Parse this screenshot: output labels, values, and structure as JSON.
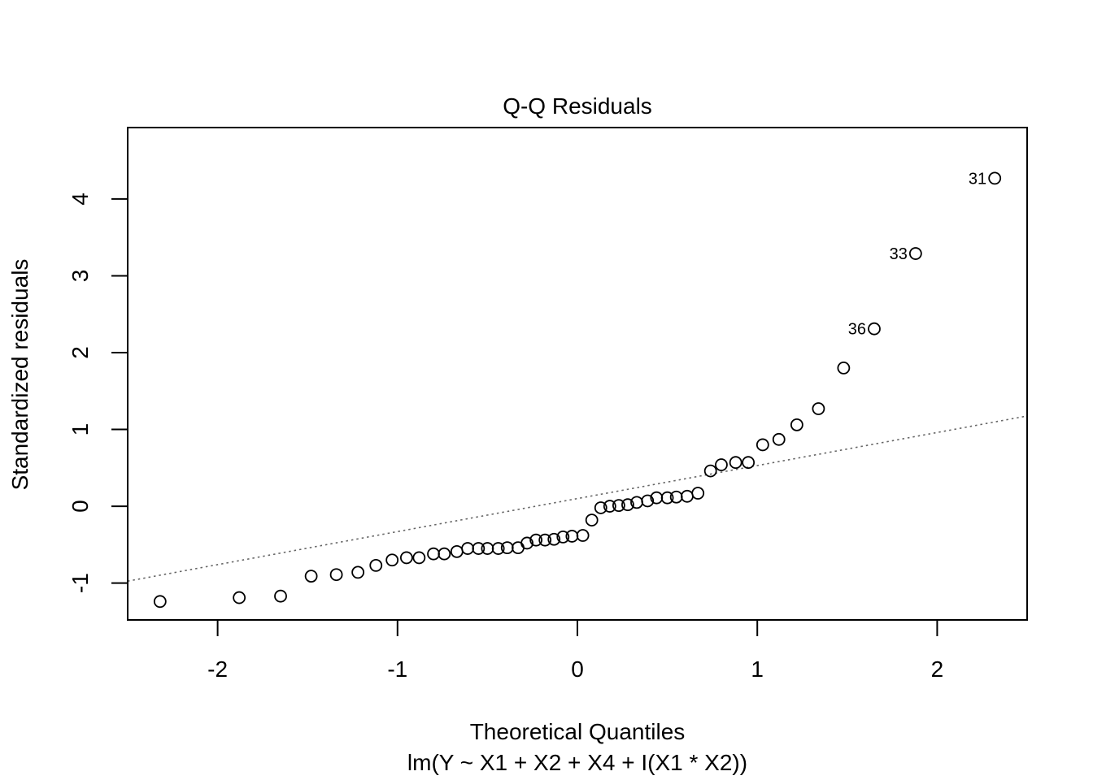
{
  "chart_data": {
    "type": "scatter",
    "title": "Q-Q Residuals",
    "xlabel": "Theoretical Quantiles",
    "sublabel": "lm(Y ~ X1 + X2 + X4 + I(X1 * X2))",
    "ylabel": "Standardized residuals",
    "xlim": [
      -2.5,
      2.5
    ],
    "ylim": [
      -1.48,
      4.93
    ],
    "x_ticks": [
      -2,
      -1,
      0,
      1,
      2
    ],
    "x_tick_labels": [
      "-2",
      "-1",
      "0",
      "1",
      "2"
    ],
    "y_ticks": [
      -1,
      0,
      1,
      2,
      3,
      4
    ],
    "y_tick_labels": [
      "-1",
      "0",
      "1",
      "2",
      "3",
      "4"
    ],
    "grid": false,
    "reference_line": {
      "style": "dotted",
      "color": "#666666",
      "intercept": 0.1,
      "slope": 0.43
    },
    "points": [
      {
        "x": -2.32,
        "y": -1.24
      },
      {
        "x": -1.88,
        "y": -1.19
      },
      {
        "x": -1.65,
        "y": -1.17
      },
      {
        "x": -1.48,
        "y": -0.91
      },
      {
        "x": -1.34,
        "y": -0.89
      },
      {
        "x": -1.22,
        "y": -0.86
      },
      {
        "x": -1.12,
        "y": -0.77
      },
      {
        "x": -1.03,
        "y": -0.7
      },
      {
        "x": -0.95,
        "y": -0.67
      },
      {
        "x": -0.88,
        "y": -0.67
      },
      {
        "x": -0.8,
        "y": -0.62
      },
      {
        "x": -0.74,
        "y": -0.62
      },
      {
        "x": -0.67,
        "y": -0.59
      },
      {
        "x": -0.61,
        "y": -0.55
      },
      {
        "x": -0.55,
        "y": -0.55
      },
      {
        "x": -0.5,
        "y": -0.55
      },
      {
        "x": -0.44,
        "y": -0.55
      },
      {
        "x": -0.39,
        "y": -0.54
      },
      {
        "x": -0.33,
        "y": -0.54
      },
      {
        "x": -0.28,
        "y": -0.48
      },
      {
        "x": -0.23,
        "y": -0.44
      },
      {
        "x": -0.18,
        "y": -0.44
      },
      {
        "x": -0.13,
        "y": -0.43
      },
      {
        "x": -0.08,
        "y": -0.4
      },
      {
        "x": -0.03,
        "y": -0.39
      },
      {
        "x": 0.03,
        "y": -0.38
      },
      {
        "x": 0.08,
        "y": -0.18
      },
      {
        "x": 0.13,
        "y": -0.02
      },
      {
        "x": 0.18,
        "y": 0.0
      },
      {
        "x": 0.23,
        "y": 0.01
      },
      {
        "x": 0.28,
        "y": 0.02
      },
      {
        "x": 0.33,
        "y": 0.05
      },
      {
        "x": 0.39,
        "y": 0.07
      },
      {
        "x": 0.44,
        "y": 0.11
      },
      {
        "x": 0.5,
        "y": 0.11
      },
      {
        "x": 0.55,
        "y": 0.12
      },
      {
        "x": 0.61,
        "y": 0.13
      },
      {
        "x": 0.67,
        "y": 0.17
      },
      {
        "x": 0.74,
        "y": 0.46
      },
      {
        "x": 0.8,
        "y": 0.54
      },
      {
        "x": 0.88,
        "y": 0.57
      },
      {
        "x": 0.95,
        "y": 0.57
      },
      {
        "x": 1.03,
        "y": 0.8
      },
      {
        "x": 1.12,
        "y": 0.87
      },
      {
        "x": 1.22,
        "y": 1.06
      },
      {
        "x": 1.34,
        "y": 1.27
      },
      {
        "x": 1.48,
        "y": 1.8
      },
      {
        "x": 1.65,
        "y": 2.31,
        "label": "36"
      },
      {
        "x": 1.88,
        "y": 3.29,
        "label": "33"
      },
      {
        "x": 2.32,
        "y": 4.27,
        "label": "31"
      }
    ]
  }
}
